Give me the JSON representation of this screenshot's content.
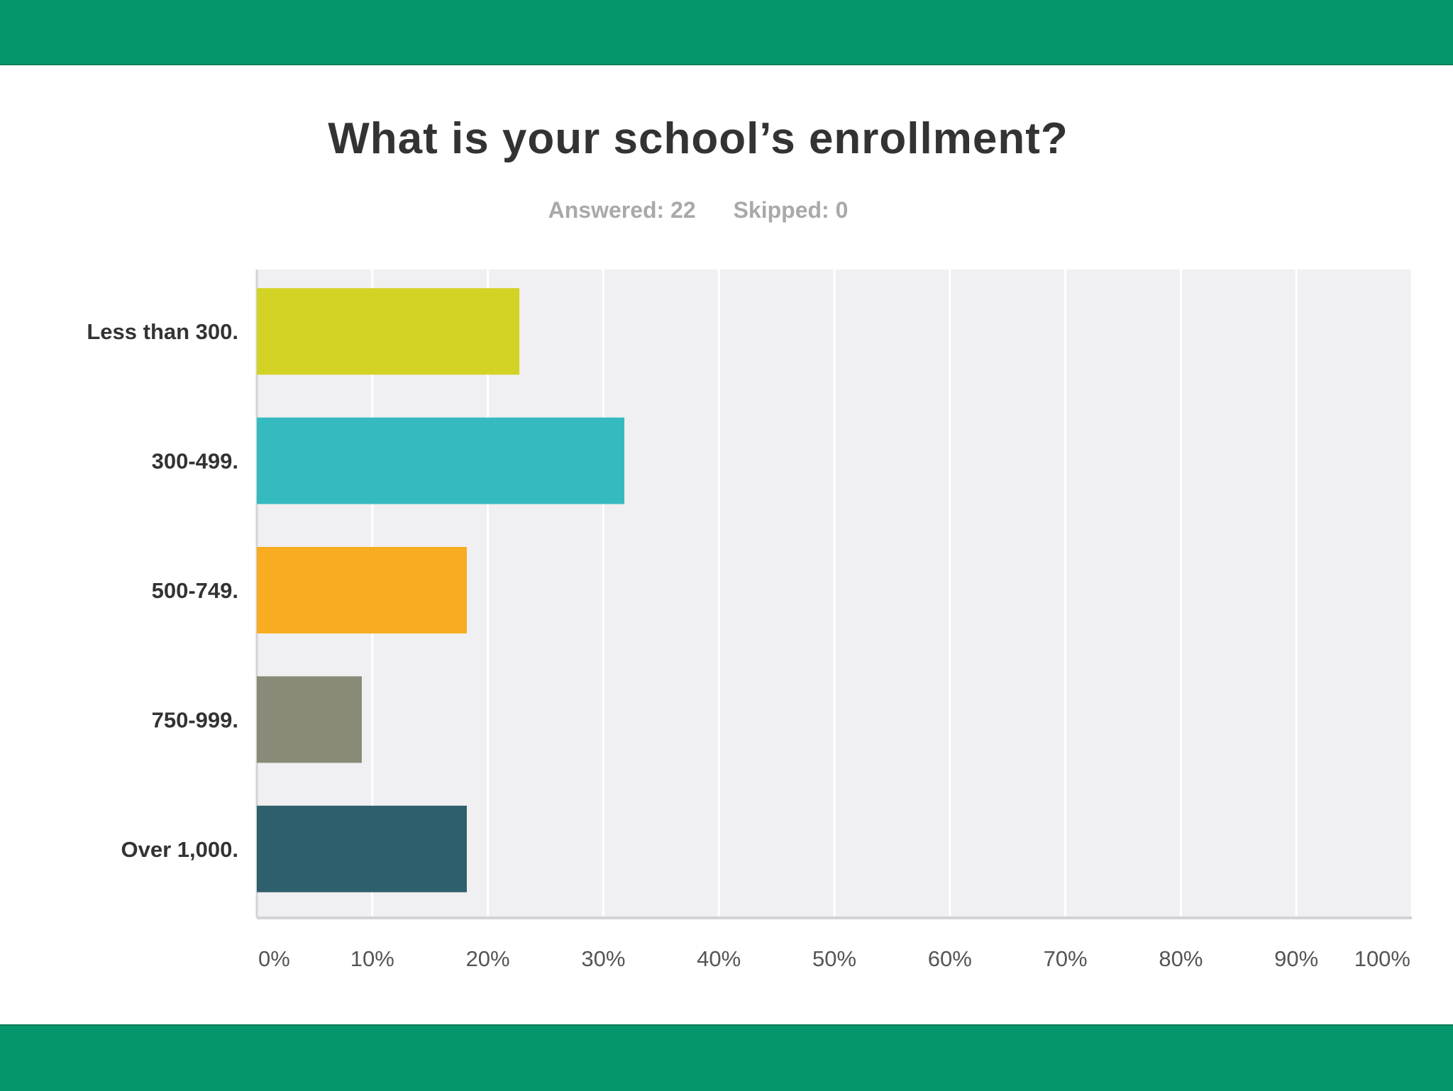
{
  "colors": {
    "band": "#05976b",
    "plot_bg": "#f0eff1",
    "grid": "#ffffff",
    "axis": "#d3d3d5"
  },
  "header": {
    "title": "What is your school’s enrollment?",
    "answered": "Answered: 22",
    "skipped": "Skipped: 0"
  },
  "chart_data": {
    "type": "bar",
    "orientation": "horizontal",
    "title": "What is your school’s enrollment?",
    "categories": [
      "Less than 300.",
      "300-499.",
      "500-749.",
      "750-999.",
      "Over 1,000."
    ],
    "values": [
      22.73,
      31.82,
      18.18,
      9.09,
      18.18
    ],
    "colors": [
      "#d3d325",
      "#35bbbf",
      "#f7ad1f",
      "#898a77",
      "#2e5f6c"
    ],
    "xlim": [
      0,
      100
    ],
    "xticks": [
      "0%",
      "10%",
      "20%",
      "30%",
      "40%",
      "50%",
      "60%",
      "70%",
      "80%",
      "90%",
      "100%"
    ],
    "grid": true,
    "xlabel": "",
    "ylabel": ""
  }
}
